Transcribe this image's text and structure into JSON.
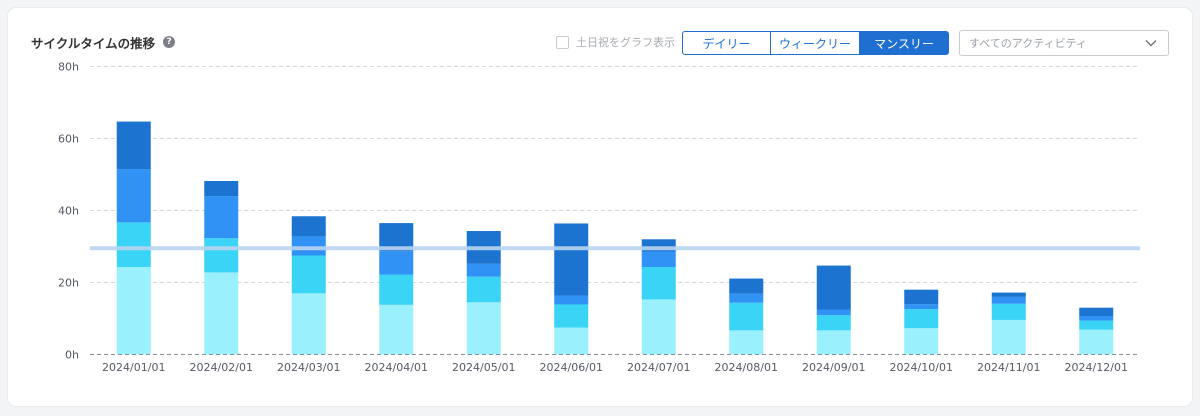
{
  "header": {
    "title": "サイクルタイムの推移",
    "help_icon": "?",
    "weekend_label": "土日祝をグラフ表示",
    "period_tabs": [
      {
        "label": "デイリー",
        "active": false
      },
      {
        "label": "ウィークリー",
        "active": false
      },
      {
        "label": "マンスリー",
        "active": true
      }
    ],
    "activity_select": {
      "value": "すべてのアクティビティ",
      "icon": "chevron-down-icon"
    }
  },
  "colors": {
    "series": [
      "#9bf0fd",
      "#3ad4f6",
      "#2f92f4",
      "#1c73d0"
    ],
    "average_line": "#b8d4f1",
    "accent": "#1e6fd0"
  },
  "chart_data": {
    "type": "bar",
    "stacked": true,
    "categories": [
      "2024/01/01",
      "2024/02/01",
      "2024/03/01",
      "2024/04/01",
      "2024/05/01",
      "2024/06/01",
      "2024/07/01",
      "2024/08/01",
      "2024/09/01",
      "2024/10/01",
      "2024/11/01",
      "2024/12/01"
    ],
    "series": [
      {
        "values": [
          24.3,
          22.8,
          17.0,
          13.8,
          14.5,
          7.5,
          15.3,
          6.7,
          6.7,
          7.3,
          9.6,
          6.9
        ]
      },
      {
        "values": [
          12.4,
          9.5,
          10.5,
          8.4,
          7.1,
          6.4,
          9.0,
          7.7,
          4.2,
          5.3,
          4.5,
          2.5
        ]
      },
      {
        "values": [
          14.8,
          11.7,
          5.3,
          6.5,
          3.6,
          2.5,
          4.3,
          2.5,
          1.6,
          1.4,
          1.9,
          1.3
        ]
      },
      {
        "values": [
          13.2,
          4.2,
          5.6,
          7.8,
          9.1,
          20.0,
          3.4,
          4.2,
          12.2,
          4.0,
          1.2,
          2.3
        ]
      }
    ],
    "yticks": [
      "0h",
      "20h",
      "40h",
      "60h",
      "80h"
    ],
    "ylim": [
      0,
      80
    ],
    "average_value": 29.5,
    "grid": true
  }
}
